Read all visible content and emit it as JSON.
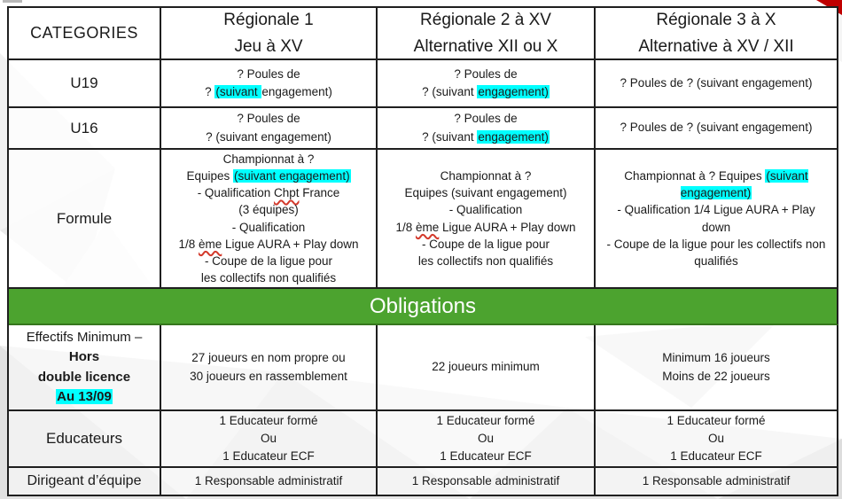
{
  "colors": {
    "highlight": "#00FFFF",
    "banner_green": "#4CA32F",
    "banner_text": "#FFFFFF",
    "corner_red": "#C00000",
    "border_black": "#1F1F1F"
  },
  "header": {
    "categories": "CATEGORIES",
    "columns": [
      {
        "line1": "Régionale 1",
        "line2": "Jeu à XV"
      },
      {
        "line1": "Régionale 2 à XV",
        "line2": "Alternative XII ou X"
      },
      {
        "line1": "Régionale 3 à X",
        "line2": "Alternative à XV / XII"
      }
    ]
  },
  "rows": [
    {
      "label": "U19",
      "cells": [
        [
          {
            "t": "? Poules de"
          },
          {
            "br": true
          },
          {
            "t": "? "
          },
          {
            "t": "(suivant ",
            "hl": true
          },
          {
            "t": "engagement)"
          }
        ],
        [
          {
            "t": "? Poules de"
          },
          {
            "br": true
          },
          {
            "t": "? (suivant "
          },
          {
            "t": "engagement)",
            "hl": true
          }
        ],
        [
          {
            "t": "? Poules de ? (suivant engagement)"
          }
        ]
      ]
    },
    {
      "label": "U16",
      "cells": [
        [
          {
            "t": "? Poules de"
          },
          {
            "br": true
          },
          {
            "t": "? (suivant engagement)"
          }
        ],
        [
          {
            "t": "? Poules de"
          },
          {
            "br": true
          },
          {
            "t": "? (suivant "
          },
          {
            "t": "engagement)",
            "hl": true
          }
        ],
        [
          {
            "t": "? Poules de ? (suivant engagement)"
          }
        ]
      ]
    },
    {
      "label": "Formule",
      "cells": [
        [
          {
            "t": "Championnat à ?"
          },
          {
            "br": true
          },
          {
            "t": "Equipes "
          },
          {
            "t": "(suivant engagement)",
            "hl": true
          },
          {
            "br": true
          },
          {
            "t": "- Qualification "
          },
          {
            "t": "Chpt",
            "sq": true
          },
          {
            "t": " France"
          },
          {
            "br": true
          },
          {
            "t": "(3 équipes)"
          },
          {
            "br": true
          },
          {
            "t": "- Qualification"
          },
          {
            "br": true
          },
          {
            "t": "1/8 "
          },
          {
            "t": "ème",
            "sq": true
          },
          {
            "t": " Ligue AURA + Play down"
          },
          {
            "br": true
          },
          {
            "t": "- Coupe de la ligue pour"
          },
          {
            "br": true
          },
          {
            "t": "les collectifs non qualifiés"
          }
        ],
        [
          {
            "t": "Championnat à ?"
          },
          {
            "br": true
          },
          {
            "t": "Equipes (suivant engagement)"
          },
          {
            "br": true
          },
          {
            "t": "- Qualification"
          },
          {
            "br": true
          },
          {
            "t": "1/8 "
          },
          {
            "t": "ème",
            "sq": true
          },
          {
            "t": " Ligue AURA + Play down"
          },
          {
            "br": true
          },
          {
            "t": "- Coupe de la ligue pour"
          },
          {
            "br": true
          },
          {
            "t": "les collectifs non qualifiés"
          }
        ],
        [
          {
            "t": "Championnat à ? Equipes "
          },
          {
            "t": "(suivant engagement)",
            "hl": true
          },
          {
            "br": true
          },
          {
            "t": "- Qualification 1/4 Ligue AURA + Play down"
          },
          {
            "br": true
          },
          {
            "t": "- Coupe de la ligue pour les collectifs non qualifiés"
          }
        ]
      ]
    }
  ],
  "banner": {
    "label": "Obligations"
  },
  "obligation_rows": [
    {
      "label_segments": [
        {
          "t": "Effectifs Minimum –"
        },
        {
          "br": true
        },
        {
          "t": "Hors",
          "b": true
        },
        {
          "br": true
        },
        {
          "t": "double licence",
          "b": true
        },
        {
          "br": true
        },
        {
          "t": "Au 13/09",
          "b": true,
          "hl": true
        }
      ],
      "cells": [
        [
          {
            "t": "27 joueurs en nom propre ou"
          },
          {
            "br": true
          },
          {
            "t": "30 joueurs en rassemblement"
          }
        ],
        [
          {
            "t": "22 joueurs minimum"
          }
        ],
        [
          {
            "t": "Minimum 16 joueurs"
          },
          {
            "br": true
          },
          {
            "t": "Moins de 22 joueurs"
          }
        ]
      ]
    },
    {
      "label": "Educateurs",
      "cells": [
        [
          {
            "t": "1 Educateur formé"
          },
          {
            "br": true
          },
          {
            "t": "Ou"
          },
          {
            "br": true
          },
          {
            "t": "1 Educateur ECF"
          }
        ],
        [
          {
            "t": "1 Educateur formé"
          },
          {
            "br": true
          },
          {
            "t": "Ou"
          },
          {
            "br": true
          },
          {
            "t": "1 Educateur ECF"
          }
        ],
        [
          {
            "t": "1 Educateur formé"
          },
          {
            "br": true
          },
          {
            "t": "Ou"
          },
          {
            "br": true
          },
          {
            "t": "1 Educateur ECF"
          }
        ]
      ]
    },
    {
      "label": "Dirigeant d’équipe",
      "cells": [
        [
          {
            "t": "1 Responsable administratif"
          }
        ],
        [
          {
            "t": "1 Responsable administratif"
          }
        ],
        [
          {
            "t": "1 Responsable administratif"
          }
        ]
      ]
    }
  ]
}
